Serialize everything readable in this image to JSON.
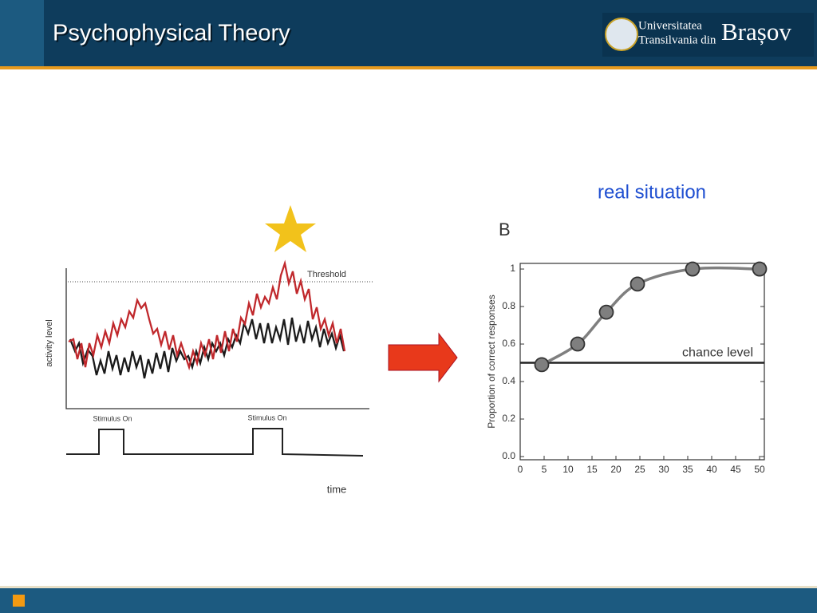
{
  "header": {
    "title": "Psychophysical Theory",
    "logo": {
      "line1": "Universitatea",
      "line2": "Transilvania din",
      "city": "Brașov"
    }
  },
  "left_figure": {
    "threshold_label": "Threshold",
    "y_label": "activity level",
    "stimulus_labels": [
      "Stimulus On",
      "Stimulus On"
    ],
    "x_label": "time"
  },
  "caption": "real situation",
  "chart_data": {
    "type": "scatter",
    "panel_label": "B",
    "ylabel": "Proportion of correct responses",
    "x": [
      4.5,
      12,
      18,
      24.5,
      36,
      50
    ],
    "series": [
      {
        "color": "#7f7f7f",
        "values": [
          0.49,
          0.6,
          0.77,
          0.92,
          1,
          1
        ]
      }
    ],
    "xlim": [
      0,
      51
    ],
    "ylim": [
      -0.017,
      1.03
    ],
    "xticks": [
      0,
      5,
      10,
      15,
      20,
      25,
      30,
      35,
      40,
      45,
      50
    ],
    "yticks": [
      {
        "value": 0,
        "label": "0.0"
      },
      0.2,
      0.4,
      0.6,
      0.8,
      1
    ],
    "hline": {
      "value": 0.5,
      "label": "chance level"
    }
  }
}
